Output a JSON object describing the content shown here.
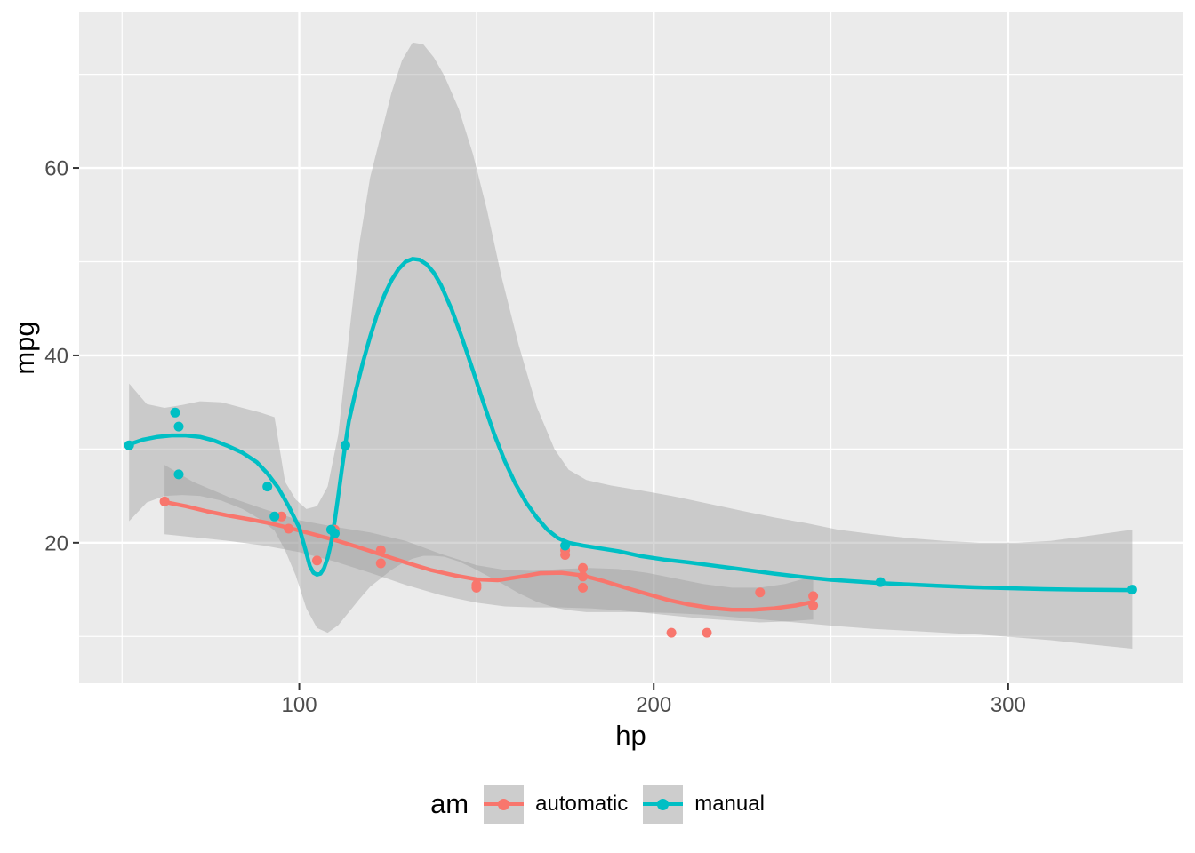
{
  "figure": {
    "background": "#FFFFFF"
  },
  "chart_data": {
    "type": "scatter",
    "title": "",
    "xlabel": "hp",
    "ylabel": "mpg",
    "xlim": [
      37.9,
      349.2
    ],
    "ylim": [
      5.0,
      76.6
    ],
    "x_ticks": [
      100,
      200,
      300
    ],
    "y_ticks": [
      20,
      40,
      60
    ],
    "x_minor": [
      50,
      150,
      250
    ],
    "y_minor": [
      10,
      30,
      50,
      70
    ],
    "grid": "on",
    "colors": {
      "panel_bg": "#EBEBEB",
      "gridline": "#FFFFFF",
      "ribbon_fill": "rgba(153,153,153,0.40)",
      "tick_mark": "#333333",
      "tick_label": "#4D4D4D",
      "axis_title": "#000000",
      "legend_key_bg": "#CDCDCD",
      "automatic": "#F8766D",
      "manual": "#00BFC4"
    },
    "legend": {
      "title": "am",
      "position": "bottom",
      "entries": [
        {
          "label": "automatic",
          "color": "#F8766D"
        },
        {
          "label": "manual",
          "color": "#00BFC4"
        }
      ]
    },
    "series": [
      {
        "name": "automatic",
        "color": "#F8766D",
        "points": [
          [
            110,
            21.4
          ],
          [
            175,
            18.7
          ],
          [
            105,
            18.1
          ],
          [
            245,
            14.3
          ],
          [
            62,
            24.4
          ],
          [
            95,
            22.8
          ],
          [
            123,
            19.2
          ],
          [
            123,
            17.8
          ],
          [
            180,
            16.4
          ],
          [
            180,
            17.3
          ],
          [
            180,
            15.2
          ],
          [
            205,
            10.4
          ],
          [
            215,
            10.4
          ],
          [
            230,
            14.7
          ],
          [
            97,
            21.5
          ],
          [
            150,
            15.5
          ],
          [
            150,
            15.2
          ],
          [
            245,
            13.3
          ],
          [
            175,
            19.2
          ]
        ],
        "smooth": [
          [
            62,
            24.35
          ],
          [
            68,
            23.9
          ],
          [
            74,
            23.35
          ],
          [
            80,
            22.9
          ],
          [
            86,
            22.5
          ],
          [
            92,
            22.05
          ],
          [
            98,
            21.5
          ],
          [
            104,
            20.9
          ],
          [
            110,
            20.3
          ],
          [
            116,
            19.6
          ],
          [
            123,
            18.75
          ],
          [
            130,
            17.9
          ],
          [
            137,
            17.1
          ],
          [
            144,
            16.5
          ],
          [
            150,
            16.1
          ],
          [
            156,
            16.0
          ],
          [
            162,
            16.35
          ],
          [
            168,
            16.75
          ],
          [
            174,
            16.8
          ],
          [
            180,
            16.5
          ],
          [
            186,
            15.9
          ],
          [
            192,
            15.2
          ],
          [
            198,
            14.55
          ],
          [
            204,
            13.9
          ],
          [
            210,
            13.4
          ],
          [
            216,
            13.05
          ],
          [
            222,
            12.85
          ],
          [
            228,
            12.85
          ],
          [
            234,
            13.0
          ],
          [
            240,
            13.3
          ],
          [
            245,
            13.7
          ]
        ],
        "ribbon": [
          [
            62,
            20.9,
            28.3
          ],
          [
            70,
            20.6,
            26.5
          ],
          [
            80,
            20.2,
            24.9
          ],
          [
            90,
            19.7,
            23.6
          ],
          [
            100,
            19.0,
            22.4
          ],
          [
            110,
            18.0,
            21.7
          ],
          [
            120,
            16.8,
            21.1
          ],
          [
            130,
            15.5,
            20.2
          ],
          [
            140,
            14.4,
            18.8
          ],
          [
            150,
            13.6,
            17.6
          ],
          [
            158,
            13.2,
            17.1
          ],
          [
            166,
            13.1,
            17.0
          ],
          [
            174,
            13.1,
            17.2
          ],
          [
            182,
            13.0,
            17.3
          ],
          [
            190,
            12.8,
            17.2
          ],
          [
            198,
            12.5,
            16.8
          ],
          [
            206,
            12.2,
            16.2
          ],
          [
            214,
            11.9,
            15.6
          ],
          [
            222,
            11.7,
            15.2
          ],
          [
            230,
            11.5,
            15.2
          ],
          [
            237,
            11.6,
            15.6
          ],
          [
            245,
            11.8,
            16.4
          ]
        ]
      },
      {
        "name": "manual",
        "color": "#00BFC4",
        "points": [
          [
            110,
            21
          ],
          [
            110,
            21
          ],
          [
            93,
            22.8
          ],
          [
            66,
            32.4
          ],
          [
            52,
            30.4
          ],
          [
            65,
            33.9
          ],
          [
            66,
            27.3
          ],
          [
            91,
            26
          ],
          [
            113,
            30.4
          ],
          [
            264,
            15.8
          ],
          [
            175,
            19.7
          ],
          [
            335,
            15
          ],
          [
            109,
            21.4
          ]
        ],
        "smooth": [
          [
            52,
            30.5
          ],
          [
            56,
            31.0
          ],
          [
            60,
            31.3
          ],
          [
            64,
            31.45
          ],
          [
            68,
            31.45
          ],
          [
            72,
            31.3
          ],
          [
            76,
            30.9
          ],
          [
            80,
            30.3
          ],
          [
            84,
            29.6
          ],
          [
            88,
            28.6
          ],
          [
            91,
            27.4
          ],
          [
            94,
            25.9
          ],
          [
            97,
            23.9
          ],
          [
            100,
            21.6
          ],
          [
            102,
            18.9
          ],
          [
            103,
            17.5
          ],
          [
            104,
            16.8
          ],
          [
            105,
            16.6
          ],
          [
            106,
            16.7
          ],
          [
            107,
            17.3
          ],
          [
            108,
            18.4
          ],
          [
            109,
            20.0
          ],
          [
            110,
            22.3
          ],
          [
            111,
            25.0
          ],
          [
            112,
            27.8
          ],
          [
            113,
            30.5
          ],
          [
            114,
            33.0
          ],
          [
            116,
            36.3
          ],
          [
            118,
            39.3
          ],
          [
            120,
            42.0
          ],
          [
            122,
            44.4
          ],
          [
            124,
            46.4
          ],
          [
            126,
            48.0
          ],
          [
            128,
            49.2
          ],
          [
            130,
            50.0
          ],
          [
            132,
            50.3
          ],
          [
            134,
            50.2
          ],
          [
            136,
            49.7
          ],
          [
            138,
            48.8
          ],
          [
            140,
            47.5
          ],
          [
            143,
            44.9
          ],
          [
            146,
            41.8
          ],
          [
            149,
            38.4
          ],
          [
            152,
            34.9
          ],
          [
            155,
            31.6
          ],
          [
            158,
            28.7
          ],
          [
            161,
            26.3
          ],
          [
            164,
            24.3
          ],
          [
            167,
            22.7
          ],
          [
            170,
            21.4
          ],
          [
            173,
            20.5
          ],
          [
            176,
            20.0
          ],
          [
            180,
            19.7
          ],
          [
            185,
            19.4
          ],
          [
            190,
            19.1
          ],
          [
            196,
            18.6
          ],
          [
            203,
            18.2
          ],
          [
            210,
            17.9
          ],
          [
            218,
            17.5
          ],
          [
            226,
            17.1
          ],
          [
            234,
            16.7
          ],
          [
            242,
            16.35
          ],
          [
            250,
            16.05
          ],
          [
            258,
            15.85
          ],
          [
            264,
            15.7
          ],
          [
            272,
            15.55
          ],
          [
            280,
            15.4
          ],
          [
            290,
            15.25
          ],
          [
            300,
            15.15
          ],
          [
            310,
            15.05
          ],
          [
            320,
            15.0
          ],
          [
            328,
            14.97
          ],
          [
            335,
            14.95
          ]
        ],
        "ribbon": [
          [
            52,
            22.3,
            37.0
          ],
          [
            57,
            24.3,
            34.8
          ],
          [
            62,
            25.0,
            34.4
          ],
          [
            67,
            25.1,
            34.7
          ],
          [
            72,
            25.0,
            35.1
          ],
          [
            78,
            24.5,
            35.0
          ],
          [
            84,
            23.6,
            34.4
          ],
          [
            89,
            22.5,
            33.9
          ],
          [
            93,
            21.3,
            33.4
          ],
          [
            96,
            19.2,
            26.5
          ],
          [
            99,
            16.5,
            24.6
          ],
          [
            102,
            13.0,
            23.6
          ],
          [
            105,
            10.9,
            23.9
          ],
          [
            108,
            10.4,
            26.0
          ],
          [
            111,
            11.2,
            31.5
          ],
          [
            114,
            12.6,
            42.0
          ],
          [
            117,
            14.0,
            52.0
          ],
          [
            120,
            15.3,
            59.0
          ],
          [
            123,
            16.2,
            63.5
          ],
          [
            126,
            17.1,
            68.0
          ],
          [
            129,
            17.8,
            71.5
          ],
          [
            132,
            18.3,
            73.4
          ],
          [
            135,
            18.6,
            73.2
          ],
          [
            138,
            18.6,
            71.8
          ],
          [
            141,
            18.5,
            69.8
          ],
          [
            145,
            18.0,
            66.3
          ],
          [
            149,
            17.3,
            61.5
          ],
          [
            153,
            16.5,
            55.5
          ],
          [
            157,
            15.7,
            48.5
          ],
          [
            162,
            14.6,
            41.0
          ],
          [
            167,
            13.7,
            34.5
          ],
          [
            172,
            13.1,
            30.0
          ],
          [
            176,
            12.8,
            27.8
          ],
          [
            181,
            12.6,
            26.7
          ],
          [
            188,
            12.6,
            26.1
          ],
          [
            196,
            12.6,
            25.6
          ],
          [
            205,
            12.5,
            25.0
          ],
          [
            215,
            12.3,
            24.2
          ],
          [
            225,
            12.0,
            23.4
          ],
          [
            234,
            11.7,
            22.7
          ],
          [
            243,
            11.4,
            22.1
          ],
          [
            252,
            11.1,
            21.4
          ],
          [
            262,
            10.8,
            20.9
          ],
          [
            272,
            10.6,
            20.5
          ],
          [
            282,
            10.4,
            20.2
          ],
          [
            292,
            10.2,
            20.0
          ],
          [
            302,
            9.9,
            20.0
          ],
          [
            312,
            9.6,
            20.2
          ],
          [
            322,
            9.2,
            20.7
          ],
          [
            335,
            8.7,
            21.4
          ]
        ]
      }
    ]
  }
}
